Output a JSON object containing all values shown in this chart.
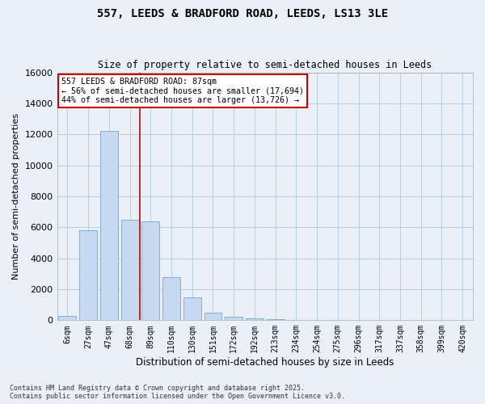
{
  "title_line1": "557, LEEDS & BRADFORD ROAD, LEEDS, LS13 3LE",
  "title_line2": "Size of property relative to semi-detached houses in Leeds",
  "xlabel": "Distribution of semi-detached houses by size in Leeds",
  "ylabel": "Number of semi-detached properties",
  "categories": [
    "6sqm",
    "27sqm",
    "47sqm",
    "68sqm",
    "89sqm",
    "110sqm",
    "130sqm",
    "151sqm",
    "172sqm",
    "192sqm",
    "213sqm",
    "234sqm",
    "254sqm",
    "275sqm",
    "296sqm",
    "317sqm",
    "337sqm",
    "358sqm",
    "399sqm",
    "420sqm"
  ],
  "values": [
    300,
    5800,
    12200,
    6500,
    6400,
    2800,
    1500,
    500,
    200,
    100,
    50,
    0,
    0,
    0,
    0,
    0,
    0,
    0,
    0,
    0
  ],
  "bar_color": "#c6d9f0",
  "bar_edge_color": "#7ba3cc",
  "grid_color": "#b8cfe0",
  "bg_color": "#eaf0f8",
  "property_label": "557 LEEDS & BRADFORD ROAD: 87sqm",
  "pct_smaller": 56,
  "pct_larger": 44,
  "n_smaller": 17694,
  "n_larger": 13726,
  "vline_index": 3,
  "annotation_box_color": "#cc0000",
  "ylim": [
    0,
    16000
  ],
  "yticks": [
    0,
    2000,
    4000,
    6000,
    8000,
    10000,
    12000,
    14000,
    16000
  ],
  "footer_line1": "Contains HM Land Registry data © Crown copyright and database right 2025.",
  "footer_line2": "Contains public sector information licensed under the Open Government Licence v3.0."
}
